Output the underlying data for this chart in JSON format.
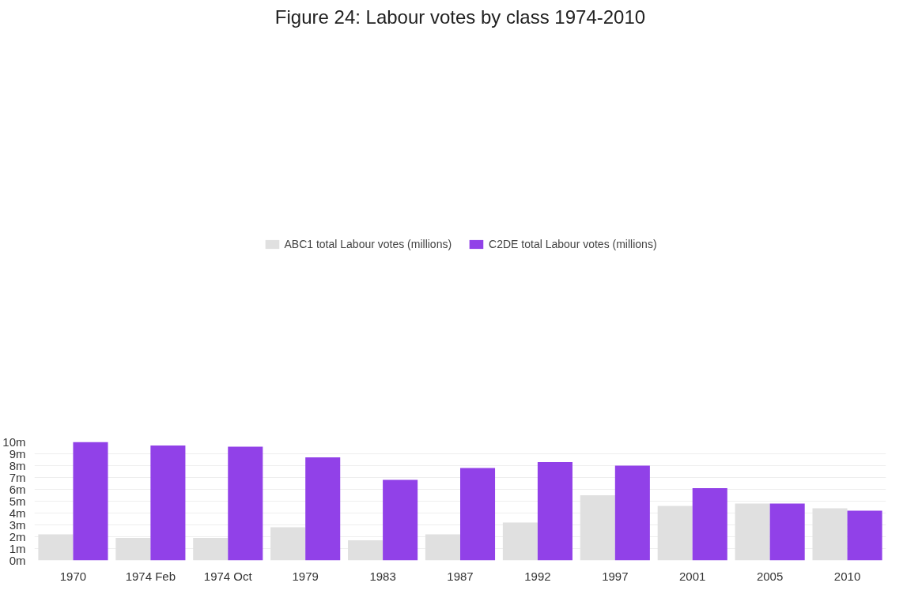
{
  "chart_data": {
    "type": "bar",
    "title": "Figure 24: Labour votes by class 1974-2010",
    "categories": [
      "1970",
      "1974 Feb",
      "1974 Oct",
      "1979",
      "1983",
      "1987",
      "1992",
      "1997",
      "2001",
      "2005",
      "2010"
    ],
    "series": [
      {
        "name": "ABC1 total Labour votes (millions)",
        "color": "#e0e0e0",
        "values": [
          2.2,
          1.9,
          1.9,
          2.8,
          1.7,
          2.2,
          3.2,
          5.5,
          4.6,
          4.8,
          4.4
        ]
      },
      {
        "name": "C2DE total Labour votes (millions)",
        "color": "#9141e8",
        "values": [
          10.0,
          9.7,
          9.6,
          8.7,
          6.8,
          7.8,
          8.3,
          8.0,
          6.1,
          4.8,
          4.2
        ]
      }
    ],
    "ylim": [
      0,
      10
    ],
    "yticks": [
      {
        "value": 0,
        "label": "0m"
      },
      {
        "value": 1,
        "label": "1m"
      },
      {
        "value": 2,
        "label": "2m"
      },
      {
        "value": 3,
        "label": "3m"
      },
      {
        "value": 4,
        "label": "4m"
      },
      {
        "value": 5,
        "label": "5m"
      },
      {
        "value": 6,
        "label": "6m"
      },
      {
        "value": 7,
        "label": "7m"
      },
      {
        "value": 8,
        "label": "8m"
      },
      {
        "value": 9,
        "label": "9m"
      },
      {
        "value": 10,
        "label": "10m"
      }
    ],
    "grid": "y",
    "legend": "top"
  }
}
